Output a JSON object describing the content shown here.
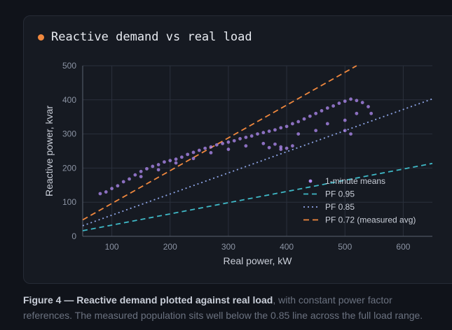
{
  "panel": {
    "title": "Reactive demand vs real load",
    "accent": "#f0883e"
  },
  "caption": {
    "lead": "Figure 4 — Reactive demand plotted against real load",
    "rest": ", with constant power factor references. The measured population sits well below the 0.85 line across the full load range."
  },
  "chart_data": {
    "type": "scatter",
    "xlabel": "Real power, kW",
    "ylabel": "Reactive power, kvar",
    "xlim": [
      50,
      650
    ],
    "ylim": [
      0,
      500
    ],
    "xticks": [
      100,
      200,
      300,
      400,
      500,
      600
    ],
    "yticks": [
      0,
      100,
      200,
      300,
      400,
      500
    ],
    "grid": true,
    "legend_position": "bottom-right",
    "scatter": {
      "name": "1-minute means",
      "color": "#b38cf5",
      "points": [
        [
          80,
          125
        ],
        [
          90,
          130
        ],
        [
          100,
          140
        ],
        [
          110,
          148
        ],
        [
          120,
          160
        ],
        [
          130,
          168
        ],
        [
          140,
          180
        ],
        [
          150,
          190
        ],
        [
          160,
          198
        ],
        [
          170,
          205
        ],
        [
          180,
          210
        ],
        [
          190,
          218
        ],
        [
          200,
          222
        ],
        [
          210,
          226
        ],
        [
          220,
          232
        ],
        [
          230,
          240
        ],
        [
          240,
          246
        ],
        [
          250,
          252
        ],
        [
          260,
          258
        ],
        [
          270,
          262
        ],
        [
          280,
          268
        ],
        [
          290,
          272
        ],
        [
          300,
          276
        ],
        [
          310,
          280
        ],
        [
          320,
          286
        ],
        [
          330,
          290
        ],
        [
          340,
          294
        ],
        [
          350,
          300
        ],
        [
          360,
          304
        ],
        [
          370,
          308
        ],
        [
          380,
          312
        ],
        [
          390,
          318
        ],
        [
          400,
          322
        ],
        [
          410,
          330
        ],
        [
          420,
          336
        ],
        [
          430,
          344
        ],
        [
          440,
          352
        ],
        [
          450,
          360
        ],
        [
          460,
          368
        ],
        [
          470,
          376
        ],
        [
          480,
          382
        ],
        [
          490,
          390
        ],
        [
          500,
          396
        ],
        [
          510,
          402
        ],
        [
          520,
          398
        ],
        [
          530,
          392
        ],
        [
          150,
          175
        ],
        [
          180,
          195
        ],
        [
          210,
          215
        ],
        [
          240,
          228
        ],
        [
          270,
          245
        ],
        [
          300,
          255
        ],
        [
          330,
          265
        ],
        [
          360,
          272
        ],
        [
          380,
          270
        ],
        [
          390,
          262
        ],
        [
          400,
          258
        ],
        [
          410,
          265
        ],
        [
          370,
          260
        ],
        [
          390,
          255
        ],
        [
          420,
          300
        ],
        [
          450,
          310
        ],
        [
          470,
          330
        ],
        [
          500,
          340
        ],
        [
          520,
          360
        ],
        [
          540,
          380
        ],
        [
          545,
          360
        ],
        [
          500,
          310
        ],
        [
          510,
          300
        ]
      ]
    },
    "series": [
      {
        "name": "PF 0.95",
        "color": "#3fb9c7",
        "dash": "7 5",
        "x": [
          50,
          650
        ],
        "y": [
          16.4,
          213.6
        ]
      },
      {
        "name": "PF 0.85",
        "color": "#8fa6e8",
        "dash": "2 4",
        "x": [
          50,
          650
        ],
        "y": [
          31.0,
          402.8
        ]
      },
      {
        "name": "PF 0.72 (measured avg)",
        "color": "#f0883e",
        "dash": "8 5",
        "x": [
          50,
          520
        ],
        "y": [
          48.2,
          500
        ]
      }
    ]
  }
}
